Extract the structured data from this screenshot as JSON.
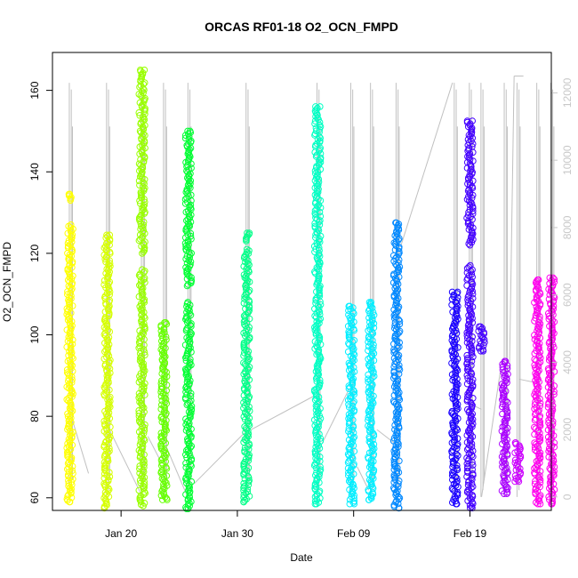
{
  "chart_data": {
    "type": "scatter",
    "title": "ORCAS RF01-18 O2_OCN_FMPD",
    "xlabel": "Date",
    "ylabel": "O2_OCN_FMPD",
    "x_unit": "day of 2016 (Jan 1 = 1)",
    "xlim": [
      14.1,
      57.0
    ],
    "ylim": [
      56.9,
      169.3
    ],
    "y2lim": [
      -400,
      13200
    ],
    "x_ticks": [
      {
        "value": 20,
        "label": "Jan 20"
      },
      {
        "value": 30,
        "label": "Jan 30"
      },
      {
        "value": 40,
        "label": "Feb 09"
      },
      {
        "value": 50,
        "label": "Feb 19"
      }
    ],
    "y_ticks": [
      60,
      80,
      100,
      120,
      140,
      160
    ],
    "y2_ticks": [
      0,
      2000,
      4000,
      6000,
      8000,
      10000,
      12000
    ],
    "grid": false,
    "legend": "none",
    "secondary_series_color": "#c0c0c0",
    "series": [
      {
        "color": "#ffff00",
        "segments": [
          {
            "x": 15.6,
            "y_min": 59,
            "y_max": 134.5,
            "ranges": [
              [
                59,
                127
              ],
              [
                133,
                134.5
              ]
            ]
          }
        ]
      },
      {
        "color": "#d6ff00",
        "segments": [
          {
            "x": 18.8,
            "y_min": 57.5,
            "y_max": 124.5,
            "ranges": [
              [
                57.5,
                124.5
              ]
            ]
          }
        ]
      },
      {
        "color": "#99ff00",
        "segments": [
          {
            "x": 21.8,
            "y_min": 58,
            "y_max": 165,
            "ranges": [
              [
                58,
                116
              ],
              [
                120,
                165
              ]
            ]
          }
        ]
      },
      {
        "color": "#66ff00",
        "segments": [
          {
            "x": 23.7,
            "y_min": 59.5,
            "y_max": 103,
            "ranges": [
              [
                59.5,
                103
              ]
            ]
          }
        ]
      },
      {
        "color": "#00ff33",
        "segments": [
          {
            "x": 25.8,
            "y_min": 57.3,
            "y_max": 150,
            "ranges": [
              [
                57.3,
                108
              ],
              [
                112,
                150
              ]
            ]
          }
        ]
      },
      {
        "color": "#00ff88",
        "segments": [
          {
            "x": 30.8,
            "y_min": 59,
            "y_max": 125,
            "ranges": [
              [
                59,
                121
              ],
              [
                123,
                125
              ]
            ]
          }
        ]
      },
      {
        "color": "#00ffc4",
        "segments": [
          {
            "x": 36.9,
            "y_min": 58.5,
            "y_max": 156,
            "ranges": [
              [
                58.5,
                156
              ]
            ]
          }
        ]
      },
      {
        "color": "#00eeff",
        "segments": [
          {
            "x": 39.8,
            "y_min": 58.5,
            "y_max": 107,
            "ranges": [
              [
                58.5,
                107
              ]
            ]
          },
          {
            "x": 41.5,
            "y_min": 59.5,
            "y_max": 108,
            "ranges": [
              [
                59.5,
                108
              ]
            ]
          }
        ]
      },
      {
        "color": "#0088ff",
        "segments": [
          {
            "x": 43.7,
            "y_min": 57.5,
            "y_max": 127.5,
            "ranges": [
              [
                57.5,
                127.5
              ]
            ]
          }
        ]
      },
      {
        "color": "#1a00ff",
        "segments": [
          {
            "x": 48.7,
            "y_min": 58.5,
            "y_max": 110.5,
            "ranges": [
              [
                58.5,
                110.5
              ]
            ]
          }
        ]
      },
      {
        "color": "#4400ff",
        "segments": [
          {
            "x": 50.0,
            "y_min": 57.5,
            "y_max": 152.5,
            "ranges": [
              [
                57.5,
                117
              ],
              [
                122,
                152.5
              ]
            ]
          },
          {
            "x": 51.0,
            "y_min": 96,
            "y_max": 102,
            "ranges": [
              [
                96,
                102
              ]
            ]
          }
        ]
      },
      {
        "color": "#aa00ff",
        "segments": [
          {
            "x": 53.0,
            "y_min": 61,
            "y_max": 93.5,
            "ranges": [
              [
                61,
                93.5
              ]
            ]
          }
        ]
      },
      {
        "color": "#cc00ff",
        "segments": [
          {
            "x": 54.1,
            "y_min": 64,
            "y_max": 73.5,
            "ranges": [
              [
                64,
                73.5
              ]
            ]
          }
        ]
      },
      {
        "color": "#ff00ee",
        "segments": [
          {
            "x": 55.8,
            "y_min": 58.5,
            "y_max": 113.5,
            "ranges": [
              [
                58.5,
                113.5
              ]
            ]
          },
          {
            "x": 57.0,
            "y_min": 58.5,
            "y_max": 114,
            "ranges": [
              [
                58.5,
                114
              ]
            ]
          }
        ]
      }
    ]
  }
}
